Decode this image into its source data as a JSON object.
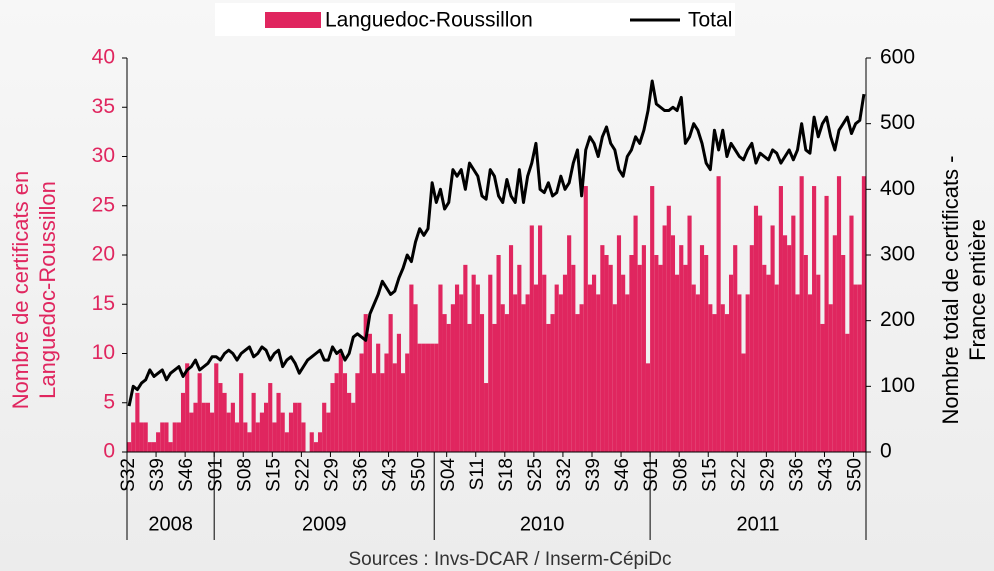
{
  "chart_data": {
    "type": "bar",
    "source": "Sources : Invs-DCAR / Inserm-CépiDc",
    "ylabel": [
      "Nombre de certificats en",
      "Languedoc-Roussillon"
    ],
    "y2label": [
      "Nombre total de certificats -",
      "France entière"
    ],
    "ylim": [
      0,
      40
    ],
    "yticks": [
      0,
      5,
      10,
      15,
      20,
      25,
      30,
      35,
      40
    ],
    "y2lim": [
      0,
      600
    ],
    "y2ticks": [
      0,
      100,
      200,
      300,
      400,
      500,
      600
    ],
    "legend": "top",
    "groups": [
      {
        "label": "2008",
        "size": 21
      },
      {
        "label": "2009",
        "size": 53
      },
      {
        "label": "2010",
        "size": 52
      },
      {
        "label": "2011",
        "size": 52
      }
    ],
    "categories": [
      "S32",
      null,
      null,
      null,
      null,
      null,
      null,
      "S39",
      null,
      null,
      null,
      null,
      null,
      null,
      "S46",
      null,
      null,
      null,
      null,
      null,
      null,
      "S01",
      null,
      null,
      null,
      null,
      null,
      null,
      "S08",
      null,
      null,
      null,
      null,
      null,
      null,
      "S15",
      null,
      null,
      null,
      null,
      null,
      null,
      "S22",
      null,
      null,
      null,
      null,
      null,
      null,
      "S29",
      null,
      null,
      null,
      null,
      null,
      null,
      "S36",
      null,
      null,
      null,
      null,
      null,
      null,
      "S43",
      null,
      null,
      null,
      null,
      null,
      null,
      "S50",
      null,
      null,
      null,
      null,
      null,
      null,
      "S04",
      null,
      null,
      null,
      null,
      null,
      null,
      "S11",
      null,
      null,
      null,
      null,
      null,
      null,
      "S18",
      null,
      null,
      null,
      null,
      null,
      null,
      "S25",
      null,
      null,
      null,
      null,
      null,
      null,
      "S32",
      null,
      null,
      null,
      null,
      null,
      null,
      "S39",
      null,
      null,
      null,
      null,
      null,
      null,
      "S46",
      null,
      null,
      null,
      null,
      null,
      null,
      "S01",
      null,
      null,
      null,
      null,
      null,
      null,
      "S08",
      null,
      null,
      null,
      null,
      null,
      null,
      "S15",
      null,
      null,
      null,
      null,
      null,
      null,
      "S22",
      null,
      null,
      null,
      null,
      null,
      null,
      "S29",
      null,
      null,
      null,
      null,
      null,
      null,
      "S36",
      null,
      null,
      null,
      null,
      null,
      null,
      "S43",
      null,
      null,
      null,
      null,
      null,
      null,
      "S50",
      null,
      null
    ],
    "series": [
      {
        "name": "Languedoc-Roussillon",
        "type": "bar",
        "color": "#e0265f",
        "values": [
          1,
          3,
          6,
          3,
          3,
          1,
          1,
          2,
          3,
          3,
          1,
          3,
          3,
          6,
          9,
          4,
          5,
          8,
          5,
          5,
          4,
          9,
          7,
          6,
          4,
          5,
          3,
          8,
          3,
          2,
          6,
          3,
          4,
          5,
          7,
          3,
          6,
          4,
          2,
          4,
          5,
          5,
          3,
          0,
          2,
          1,
          2,
          5,
          4,
          7,
          8,
          10,
          8,
          6,
          5,
          8,
          10,
          14,
          12,
          8,
          11,
          8,
          10,
          14,
          9,
          12,
          8,
          10,
          17,
          15,
          11,
          11,
          11,
          11,
          11,
          17,
          14,
          13,
          15,
          17,
          16,
          19,
          13,
          18,
          17,
          14,
          7,
          18,
          13,
          20,
          15,
          14,
          21,
          16,
          19,
          15,
          16,
          23,
          17,
          23,
          18,
          13,
          14,
          17,
          16,
          18,
          22,
          19,
          14,
          15,
          27,
          17,
          18,
          16,
          21,
          20,
          19,
          15,
          22,
          18,
          16,
          20,
          24,
          19,
          21,
          9,
          27,
          20,
          19,
          23,
          25,
          22,
          18,
          21,
          19,
          24,
          17,
          16,
          21,
          20,
          15,
          14,
          28,
          15,
          14,
          18,
          21,
          16,
          10,
          16,
          21,
          25,
          24,
          19,
          18,
          23,
          17,
          27,
          22,
          21,
          24,
          16,
          28,
          20,
          16,
          27,
          18,
          13,
          26,
          15,
          22,
          28,
          20,
          12,
          24,
          17,
          17,
          28
        ]
      },
      {
        "name": "Total",
        "type": "line",
        "axis": "y2",
        "color": "#000000",
        "values": [
          70,
          100,
          95,
          105,
          110,
          125,
          115,
          120,
          125,
          110,
          120,
          125,
          130,
          115,
          125,
          130,
          140,
          125,
          130,
          135,
          145,
          145,
          140,
          150,
          155,
          150,
          140,
          150,
          155,
          160,
          145,
          150,
          160,
          155,
          140,
          150,
          155,
          130,
          140,
          145,
          135,
          120,
          130,
          140,
          145,
          150,
          155,
          140,
          140,
          160,
          150,
          155,
          140,
          150,
          175,
          180,
          175,
          170,
          210,
          225,
          240,
          260,
          250,
          240,
          245,
          265,
          280,
          300,
          290,
          320,
          340,
          330,
          340,
          410,
          380,
          400,
          370,
          380,
          430,
          420,
          430,
          400,
          440,
          430,
          420,
          390,
          385,
          430,
          420,
          390,
          380,
          415,
          390,
          380,
          430,
          380,
          420,
          440,
          470,
          400,
          395,
          410,
          390,
          395,
          420,
          400,
          410,
          440,
          460,
          390,
          460,
          480,
          470,
          450,
          480,
          495,
          470,
          460,
          430,
          420,
          450,
          460,
          480,
          470,
          490,
          520,
          565,
          530,
          525,
          520,
          520,
          525,
          520,
          540,
          470,
          480,
          500,
          490,
          470,
          440,
          430,
          490,
          460,
          490,
          450,
          470,
          460,
          450,
          445,
          460,
          470,
          440,
          455,
          450,
          445,
          460,
          455,
          440,
          450,
          460,
          445,
          460,
          500,
          460,
          455,
          510,
          480,
          500,
          510,
          480,
          460,
          490,
          500,
          510,
          485,
          500,
          505,
          545
        ]
      }
    ]
  }
}
